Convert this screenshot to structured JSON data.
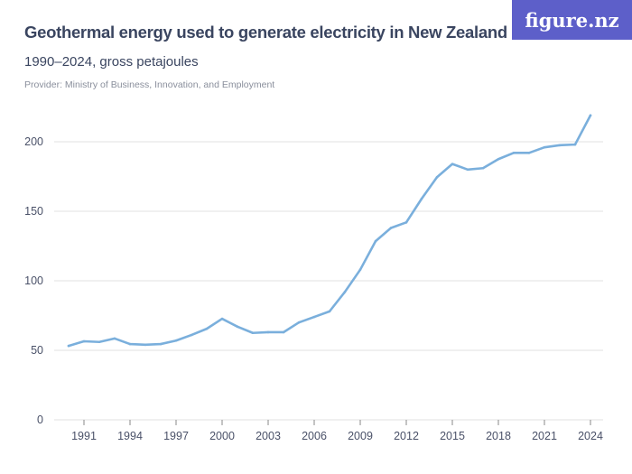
{
  "logo": "figure.nz",
  "chart_data": {
    "type": "line",
    "title": "Geothermal energy used to generate electricity in New Zealand",
    "subtitle": "1990–2024, gross petajoules",
    "provider": "Provider: Ministry of Business, Innovation, and Employment",
    "x": [
      1990,
      1991,
      1992,
      1993,
      1994,
      1995,
      1996,
      1997,
      1998,
      1999,
      2000,
      2001,
      2002,
      2003,
      2004,
      2005,
      2006,
      2007,
      2008,
      2009,
      2010,
      2011,
      2012,
      2013,
      2014,
      2015,
      2016,
      2017,
      2018,
      2019,
      2020,
      2021,
      2022,
      2023,
      2024
    ],
    "values": [
      53.2,
      56.5,
      56,
      58.5,
      54.5,
      54,
      54.5,
      57,
      61,
      65.5,
      72.7,
      67,
      62.5,
      63,
      63,
      70,
      74,
      78,
      92,
      108,
      128.5,
      138,
      142,
      159,
      174.5,
      184,
      180,
      181,
      187.5,
      192,
      192,
      196,
      197.5,
      198,
      219
    ],
    "xticks": [
      "1991",
      "1994",
      "1997",
      "2000",
      "2003",
      "2006",
      "2009",
      "2012",
      "2015",
      "2018",
      "2021",
      "2024"
    ],
    "yticks": [
      "0",
      "50",
      "100",
      "150",
      "200"
    ],
    "ylim": [
      0,
      230
    ],
    "xlim": [
      1990,
      2024
    ],
    "grid": "horizontal",
    "line_color": "#7aafdc",
    "legend": "none"
  }
}
